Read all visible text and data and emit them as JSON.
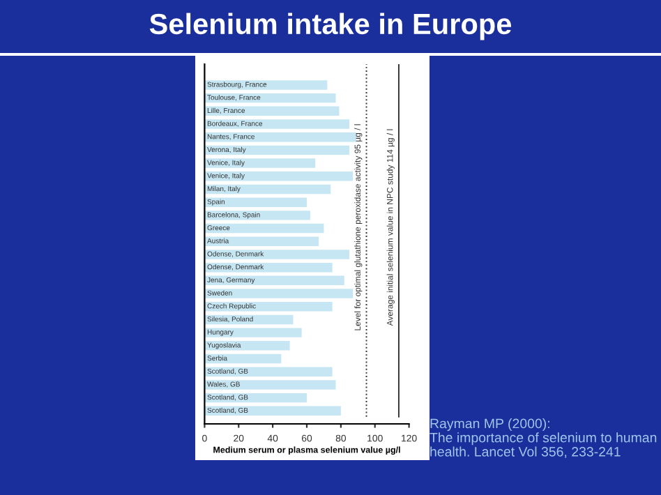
{
  "chart_data": {
    "type": "bar",
    "orientation": "horizontal",
    "title": "Selenium intake in Europe",
    "xlabel": "Medium serum or plasma selenium value µg/l",
    "categories": [
      "Strasbourg, France",
      "Toulouse, France",
      "Lille, France",
      "Bordeaux, France",
      "Nantes, France",
      "Verona, Italy",
      "Venice, Italy",
      "Venice, Italy",
      "Milan, Italy",
      "Spain",
      "Barcelona, Spain",
      "Greece",
      "Austria",
      "Odense, Denmark",
      "Odense, Denmark",
      "Jena, Germany",
      "Sweden",
      "Czech Republic",
      "Silesia, Poland",
      "Hungary",
      "Yugoslavia",
      "Serbia",
      "Scotland, GB",
      "Wales, GB",
      "Scotland, GB",
      "Scotland, GB"
    ],
    "values": [
      72,
      77,
      79,
      85,
      89,
      85,
      65,
      87,
      74,
      60,
      62,
      70,
      67,
      85,
      75,
      82,
      87,
      75,
      52,
      57,
      50,
      45,
      75,
      77,
      60,
      80
    ],
    "color": "#c6e6f3",
    "xlim": [
      0,
      120
    ],
    "xticks": [
      0,
      20,
      40,
      60,
      80,
      100,
      120
    ],
    "ref_lines": [
      {
        "axis": "x",
        "value": 95,
        "label": "Level for optimal glutathione peroxidase activity 95 µg / l",
        "line_style": "dotted",
        "color": "#333333"
      },
      {
        "axis": "x",
        "value": 114,
        "label": "Average initial selenium value in NPC study 114 µg / l",
        "line_style": "solid",
        "color": "#333333"
      }
    ],
    "annotations": [
      "Rayman MP (2000):\nThe importance of selenium to human\nhealth. Lancet Vol 356, 233-241"
    ]
  }
}
